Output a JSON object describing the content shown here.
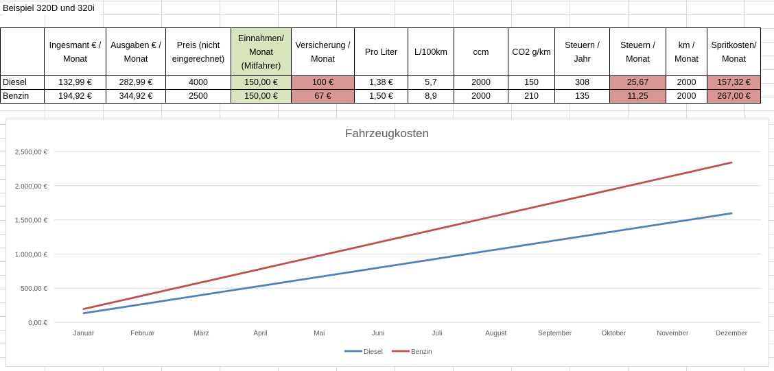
{
  "sheet_title": "Beispiel 320D und 320i",
  "table": {
    "headers": [
      "",
      "Ingesmant € / Monat",
      "Ausgaben € / Monat",
      "Preis (nicht eingerechnet)",
      "Einnahmen/ Monat (Mitfahrer)",
      "Versicherung / Monat",
      "Pro Liter",
      "L/100km",
      "ccm",
      "CO2 g/km",
      "Steuern / Jahr",
      "Steuern / Monat",
      "km / Monat",
      "Spritkosten/ Monat"
    ],
    "rows": [
      {
        "cells": [
          "Diesel",
          "132,99 €",
          "282,99 €",
          "4000",
          "150,00 €",
          "100 €",
          "1,38 €",
          "5,7",
          "2000",
          "150",
          "308",
          "25,67",
          "2000",
          "157,32 €"
        ]
      },
      {
        "cells": [
          "Benzin",
          "194,92 €",
          "344,92 €",
          "2500",
          "150,00 €",
          "67 €",
          "1,50 €",
          "8,9",
          "2000",
          "210",
          "135",
          "11,25",
          "2000",
          "267,00 €"
        ]
      }
    ],
    "colors": {
      "green": "#d8e4bc",
      "red": "#da9694"
    }
  },
  "chart_data": {
    "type": "line",
    "title": "Fahrzeugkosten",
    "categories": [
      "Januar",
      "Februar",
      "März",
      "April",
      "Mai",
      "Juni",
      "Juli",
      "August",
      "September",
      "Oktober",
      "November",
      "Dezember"
    ],
    "y_ticks": [
      "0,00 €",
      "500,00 €",
      "1.000,00 €",
      "1.500,00 €",
      "2.000,00 €",
      "2.500,00 €"
    ],
    "ylim": [
      0,
      2500
    ],
    "grid": true,
    "legend_position": "bottom",
    "series": [
      {
        "name": "Diesel",
        "color": "#4f81bd",
        "values": [
          132.99,
          265.98,
          398.97,
          531.96,
          664.95,
          797.94,
          930.93,
          1063.92,
          1196.91,
          1329.9,
          1462.89,
          1595.88
        ]
      },
      {
        "name": "Benzin",
        "color": "#c0504d",
        "values": [
          194.92,
          389.84,
          584.76,
          779.68,
          974.6,
          1169.52,
          1364.44,
          1559.36,
          1754.28,
          1949.2,
          2144.12,
          2339.04
        ]
      }
    ]
  }
}
